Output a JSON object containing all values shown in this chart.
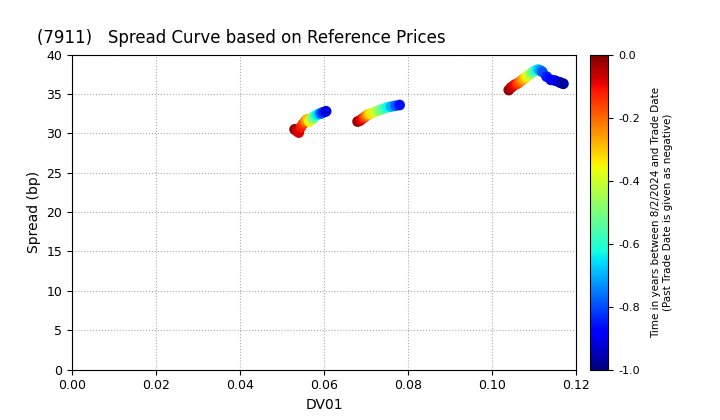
{
  "title": "(7911)   Spread Curve based on Reference Prices",
  "xlabel": "DV01",
  "ylabel": "Spread (bp)",
  "xlim": [
    0.0,
    0.12
  ],
  "ylim": [
    0,
    40
  ],
  "xticks": [
    0.0,
    0.02,
    0.04,
    0.06,
    0.08,
    0.1,
    0.12
  ],
  "yticks": [
    0,
    5,
    10,
    15,
    20,
    25,
    30,
    35,
    40
  ],
  "colorbar_label_line1": "Time in years between 8/2/2024 and Trade Date",
  "colorbar_label_line2": "(Past Trade Date is given as negative)",
  "clim": [
    -1.0,
    0.0
  ],
  "cticks": [
    0.0,
    -0.2,
    -0.4,
    -0.6,
    -0.8,
    -1.0
  ],
  "cluster1": {
    "dv01": [
      0.053,
      0.0535,
      0.054,
      0.0545,
      0.055,
      0.0555,
      0.0558,
      0.0562,
      0.0565,
      0.057,
      0.0572,
      0.0575,
      0.0578,
      0.0582,
      0.0585,
      0.059,
      0.0592,
      0.0595,
      0.06,
      0.0605
    ],
    "spread": [
      30.5,
      30.3,
      30.1,
      30.8,
      31.2,
      31.5,
      31.7,
      31.8,
      31.5,
      31.8,
      32.0,
      31.9,
      32.2,
      32.3,
      32.4,
      32.5,
      32.5,
      32.6,
      32.7,
      32.8
    ],
    "color": [
      -0.02,
      -0.05,
      -0.08,
      -0.11,
      -0.15,
      -0.2,
      -0.25,
      -0.3,
      -0.35,
      -0.4,
      -0.45,
      -0.5,
      -0.55,
      -0.6,
      -0.65,
      -0.7,
      -0.75,
      -0.8,
      -0.85,
      -0.92
    ]
  },
  "cluster2": {
    "dv01": [
      0.068,
      0.0685,
      0.069,
      0.0695,
      0.07,
      0.0705,
      0.071,
      0.072,
      0.073,
      0.074,
      0.075,
      0.076,
      0.077,
      0.078
    ],
    "spread": [
      31.5,
      31.6,
      31.8,
      32.0,
      32.2,
      32.4,
      32.5,
      32.7,
      32.9,
      33.1,
      33.3,
      33.4,
      33.5,
      33.6
    ],
    "color": [
      -0.02,
      -0.05,
      -0.09,
      -0.14,
      -0.2,
      -0.27,
      -0.33,
      -0.4,
      -0.48,
      -0.55,
      -0.63,
      -0.7,
      -0.78,
      -0.86
    ]
  },
  "cluster3": {
    "dv01": [
      0.104,
      0.1045,
      0.105,
      0.1055,
      0.106,
      0.1065,
      0.107,
      0.1075,
      0.108,
      0.1085,
      0.109,
      0.1095,
      0.11,
      0.1105,
      0.111,
      0.1115,
      0.112,
      0.113,
      0.114,
      0.115,
      0.116,
      0.1165,
      0.117
    ],
    "spread": [
      35.5,
      35.8,
      36.0,
      36.2,
      36.3,
      36.5,
      36.7,
      36.9,
      37.1,
      37.3,
      37.5,
      37.7,
      37.9,
      38.0,
      38.1,
      38.0,
      37.8,
      37.2,
      36.8,
      36.7,
      36.5,
      36.4,
      36.3
    ],
    "color": [
      -0.02,
      -0.04,
      -0.07,
      -0.1,
      -0.14,
      -0.18,
      -0.22,
      -0.27,
      -0.32,
      -0.37,
      -0.43,
      -0.49,
      -0.55,
      -0.61,
      -0.67,
      -0.73,
      -0.79,
      -0.85,
      -0.88,
      -0.9,
      -0.92,
      -0.95,
      -0.97
    ]
  },
  "background_color": "#ffffff",
  "grid_color": "#aaaaaa",
  "title_fontsize": 12,
  "axis_fontsize": 10,
  "marker_size": 60
}
